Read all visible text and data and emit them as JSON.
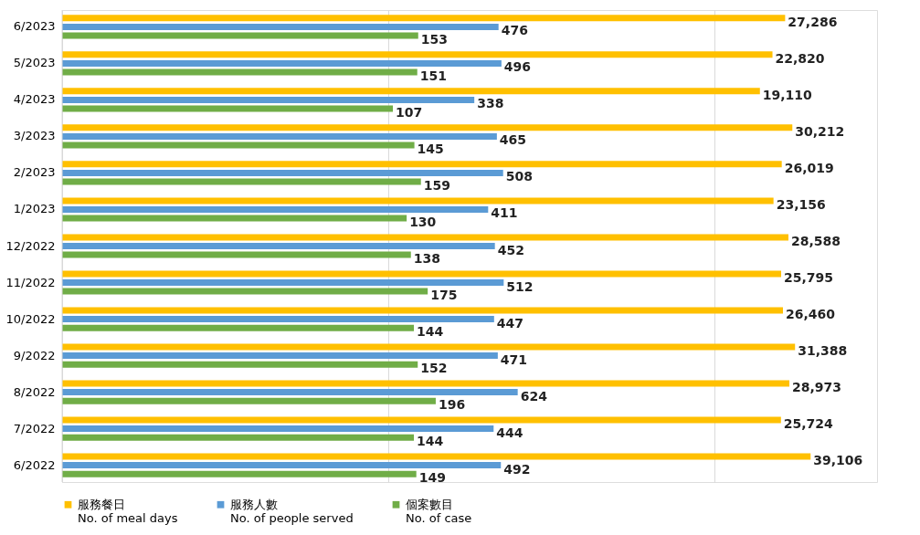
{
  "chart_data": {
    "type": "bar",
    "orientation": "horizontal",
    "log": "x",
    "grid": "x",
    "legend": "bottom",
    "tick_labels": "y",
    "categories": [
      "6/2023",
      "5/2023",
      "4/2023",
      "3/2023",
      "2/2023",
      "1/2023",
      "12/2022",
      "11/2022",
      "10/2022",
      "9/2022",
      "8/2022",
      "7/2022",
      "6/2022"
    ],
    "xlim": [
      1,
      100000
    ],
    "xticks": [
      {
        "value": 1,
        "label": null
      },
      {
        "value": 100,
        "label": null
      },
      {
        "value": 10000,
        "label": null
      }
    ],
    "series": [
      {
        "name": "服務餐日\nNo. of meal days",
        "color": "#ffc000",
        "values": [
          27286,
          22820,
          19110,
          30212,
          26019,
          23156,
          28588,
          25795,
          26460,
          31388,
          28973,
          25724,
          39106
        ],
        "value_labels": [
          "27,286",
          "22,820",
          "19,110",
          "30,212",
          "26,019",
          "23,156",
          "28,588",
          "25,795",
          "26,460",
          "31,388",
          "28,973",
          "25,724",
          "39,106"
        ]
      },
      {
        "name": "服務人數\nNo. of people served",
        "color": "#5b9bd5",
        "values": [
          476,
          496,
          338,
          465,
          508,
          411,
          452,
          512,
          447,
          471,
          624,
          444,
          492
        ],
        "value_labels": [
          "476",
          "496",
          "338",
          "465",
          "508",
          "411",
          "452",
          "512",
          "447",
          "471",
          "624",
          "444",
          "492"
        ]
      },
      {
        "name": "個案數目\nNo. of case",
        "color": "#70ad47",
        "values": [
          153,
          151,
          107,
          145,
          159,
          130,
          138,
          175,
          144,
          152,
          196,
          144,
          149
        ],
        "value_labels": [
          "153",
          "151",
          "107",
          "145",
          "159",
          "130",
          "138",
          "175",
          "144",
          "152",
          "196",
          "144",
          "149"
        ]
      }
    ]
  }
}
